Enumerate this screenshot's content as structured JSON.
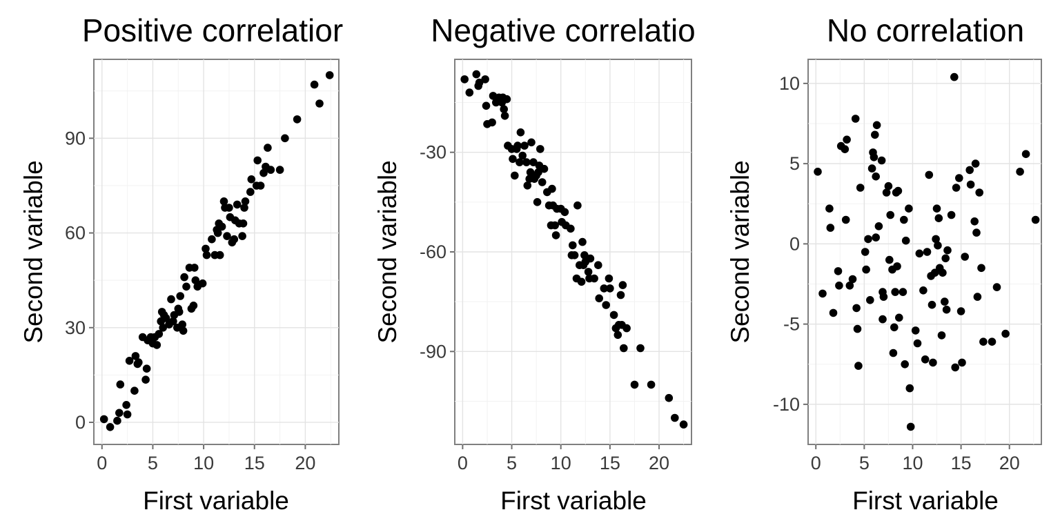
{
  "chart_data": [
    {
      "type": "scatter",
      "title": "Positive correlatior",
      "xlabel": "First variable",
      "ylabel": "Second variable",
      "xlim": [
        -0.8,
        23.3
      ],
      "ylim": [
        -7,
        115
      ],
      "xticks": [
        0,
        5,
        10,
        15,
        20
      ],
      "xtick_labels": [
        "0",
        "5",
        "10",
        "15",
        "20"
      ],
      "yticks": [
        0,
        30,
        60,
        90
      ],
      "ytick_labels": [
        "0",
        "30",
        "60",
        "90"
      ],
      "grid": true,
      "points": [
        [
          0.2,
          1
        ],
        [
          0.8,
          -1.5
        ],
        [
          1.5,
          0.5
        ],
        [
          1.7,
          3
        ],
        [
          1.8,
          12
        ],
        [
          2.4,
          5.5
        ],
        [
          2.5,
          2.5
        ],
        [
          2.7,
          19.5
        ],
        [
          3.2,
          10
        ],
        [
          3.3,
          21
        ],
        [
          3.5,
          18.5
        ],
        [
          3.6,
          19
        ],
        [
          4.0,
          27
        ],
        [
          4.3,
          13.5
        ],
        [
          4.4,
          17
        ],
        [
          4.5,
          26
        ],
        [
          4.8,
          27
        ],
        [
          5.0,
          25
        ],
        [
          5.2,
          27
        ],
        [
          5.4,
          24.5
        ],
        [
          5.6,
          28
        ],
        [
          5.8,
          32
        ],
        [
          5.9,
          35
        ],
        [
          6.0,
          30
        ],
        [
          6.1,
          34
        ],
        [
          6.3,
          33
        ],
        [
          6.6,
          31
        ],
        [
          6.8,
          39
        ],
        [
          7.0,
          32
        ],
        [
          7.1,
          34
        ],
        [
          7.4,
          30
        ],
        [
          7.5,
          36
        ],
        [
          7.6,
          35
        ],
        [
          7.7,
          40
        ],
        [
          7.9,
          31
        ],
        [
          8.0,
          29
        ],
        [
          8.1,
          46
        ],
        [
          8.3,
          43
        ],
        [
          8.6,
          49
        ],
        [
          8.8,
          36
        ],
        [
          9.0,
          37
        ],
        [
          9.1,
          49
        ],
        [
          9.2,
          45
        ],
        [
          9.4,
          43
        ],
        [
          9.9,
          44
        ],
        [
          10.2,
          55
        ],
        [
          10.3,
          53
        ],
        [
          10.8,
          58
        ],
        [
          11.1,
          53
        ],
        [
          11.3,
          61
        ],
        [
          11.4,
          60
        ],
        [
          11.5,
          63
        ],
        [
          11.6,
          53
        ],
        [
          11.8,
          62
        ],
        [
          12.0,
          70
        ],
        [
          12.1,
          68
        ],
        [
          12.3,
          59
        ],
        [
          12.5,
          68
        ],
        [
          12.6,
          65
        ],
        [
          12.8,
          57
        ],
        [
          13.0,
          58
        ],
        [
          13.1,
          64
        ],
        [
          13.3,
          69
        ],
        [
          13.5,
          63
        ],
        [
          13.8,
          59
        ],
        [
          13.9,
          63
        ],
        [
          14.0,
          68
        ],
        [
          14.1,
          70
        ],
        [
          14.6,
          73
        ],
        [
          14.7,
          77
        ],
        [
          15.2,
          75
        ],
        [
          15.3,
          83
        ],
        [
          15.6,
          75
        ],
        [
          15.9,
          79
        ],
        [
          16.1,
          81
        ],
        [
          16.3,
          87
        ],
        [
          16.6,
          80
        ],
        [
          17.5,
          80
        ],
        [
          18.0,
          90
        ],
        [
          19.2,
          96
        ],
        [
          20.9,
          107
        ],
        [
          21.4,
          101
        ],
        [
          22.4,
          110
        ]
      ]
    },
    {
      "type": "scatter",
      "title": "Negative correlatio",
      "xlabel": "First variable",
      "ylabel": "Second variable",
      "xlim": [
        -0.8,
        23.3
      ],
      "ylim": [
        -118,
        -2
      ],
      "xticks": [
        0,
        5,
        10,
        15,
        20
      ],
      "xtick_labels": [
        "0",
        "5",
        "10",
        "15",
        "20"
      ],
      "yticks": [
        -30,
        -60,
        -90
      ],
      "ytick_labels": [
        "-30",
        "-60",
        "-90"
      ],
      "grid": true,
      "points": [
        [
          0.2,
          -8
        ],
        [
          0.7,
          -12
        ],
        [
          1.4,
          -6.5
        ],
        [
          1.6,
          -10
        ],
        [
          1.7,
          -9
        ],
        [
          2.3,
          -8
        ],
        [
          2.4,
          -16
        ],
        [
          2.5,
          -21.5
        ],
        [
          3.0,
          -21
        ],
        [
          3.1,
          -13
        ],
        [
          3.4,
          -15
        ],
        [
          3.7,
          -13.5
        ],
        [
          4.0,
          -15
        ],
        [
          4.1,
          -13.5
        ],
        [
          4.2,
          -17
        ],
        [
          4.3,
          -19
        ],
        [
          4.5,
          -14
        ],
        [
          4.6,
          -28
        ],
        [
          5.0,
          -29
        ],
        [
          5.1,
          -32
        ],
        [
          5.3,
          -37
        ],
        [
          5.5,
          -29
        ],
        [
          5.6,
          -28
        ],
        [
          5.8,
          -33
        ],
        [
          5.9,
          -24
        ],
        [
          6.1,
          -31
        ],
        [
          6.3,
          -28
        ],
        [
          6.5,
          -33
        ],
        [
          6.6,
          -40
        ],
        [
          6.8,
          -38
        ],
        [
          6.9,
          -36
        ],
        [
          7.0,
          -27
        ],
        [
          7.2,
          -33
        ],
        [
          7.3,
          -38
        ],
        [
          7.5,
          -37
        ],
        [
          7.6,
          -45
        ],
        [
          7.7,
          -36
        ],
        [
          7.8,
          -34
        ],
        [
          7.9,
          -29
        ],
        [
          8.1,
          -39
        ],
        [
          8.3,
          -35
        ],
        [
          8.6,
          -42
        ],
        [
          8.8,
          -46
        ],
        [
          9.0,
          -52
        ],
        [
          9.1,
          -41
        ],
        [
          9.2,
          -46
        ],
        [
          9.4,
          -52
        ],
        [
          9.5,
          -55
        ],
        [
          9.6,
          -47
        ],
        [
          10.0,
          -47
        ],
        [
          10.1,
          -51
        ],
        [
          10.4,
          -48
        ],
        [
          10.5,
          -52
        ],
        [
          11.0,
          -53
        ],
        [
          11.1,
          -61
        ],
        [
          11.2,
          -58
        ],
        [
          11.4,
          -61
        ],
        [
          11.6,
          -68
        ],
        [
          11.7,
          -46
        ],
        [
          11.9,
          -64
        ],
        [
          12.1,
          -69
        ],
        [
          12.2,
          -57
        ],
        [
          12.3,
          -64
        ],
        [
          12.4,
          -61
        ],
        [
          12.5,
          -63
        ],
        [
          12.6,
          -62
        ],
        [
          12.8,
          -66
        ],
        [
          12.9,
          -68
        ],
        [
          13.0,
          -62
        ],
        [
          13.4,
          -68
        ],
        [
          13.8,
          -64
        ],
        [
          13.9,
          -74
        ],
        [
          14.4,
          -71
        ],
        [
          14.6,
          -76
        ],
        [
          14.9,
          -68
        ],
        [
          15.0,
          -71
        ],
        [
          15.4,
          -79
        ],
        [
          15.6,
          -83
        ],
        [
          15.8,
          -85
        ],
        [
          15.9,
          -82
        ],
        [
          16.1,
          -73
        ],
        [
          16.2,
          -82
        ],
        [
          16.3,
          -70
        ],
        [
          16.4,
          -89
        ],
        [
          16.7,
          -83
        ],
        [
          17.5,
          -100
        ],
        [
          18.1,
          -89
        ],
        [
          19.2,
          -100
        ],
        [
          21.0,
          -104
        ],
        [
          21.6,
          -110
        ],
        [
          22.5,
          -112
        ]
      ]
    },
    {
      "type": "scatter",
      "title": "No correlation",
      "xlabel": "First variable",
      "ylabel": "Second variable",
      "xlim": [
        -0.8,
        23.3
      ],
      "ylim": [
        -12.5,
        11.5
      ],
      "xticks": [
        0,
        5,
        10,
        15,
        20
      ],
      "xtick_labels": [
        "0",
        "5",
        "10",
        "15",
        "20"
      ],
      "yticks": [
        10,
        5,
        0,
        -5,
        -10
      ],
      "ytick_labels": [
        "10",
        "5",
        "0",
        "-5",
        "-10"
      ],
      "grid": true,
      "points": [
        [
          0.2,
          4.5
        ],
        [
          0.7,
          -3.1
        ],
        [
          1.4,
          2.2
        ],
        [
          1.5,
          1.0
        ],
        [
          1.8,
          -4.3
        ],
        [
          2.3,
          -1.7
        ],
        [
          2.4,
          -2.6
        ],
        [
          2.6,
          6.1
        ],
        [
          3.0,
          5.9
        ],
        [
          3.1,
          1.5
        ],
        [
          3.2,
          6.5
        ],
        [
          3.5,
          -2.6
        ],
        [
          3.8,
          -2.2
        ],
        [
          4.1,
          7.8
        ],
        [
          4.2,
          -4.0
        ],
        [
          4.3,
          -5.3
        ],
        [
          4.4,
          -7.6
        ],
        [
          4.6,
          3.5
        ],
        [
          5.1,
          -0.5
        ],
        [
          5.2,
          -1.6
        ],
        [
          5.4,
          0.3
        ],
        [
          5.6,
          -3.5
        ],
        [
          5.8,
          4.7
        ],
        [
          5.9,
          5.7
        ],
        [
          6.0,
          5.4
        ],
        [
          6.1,
          6.8
        ],
        [
          6.2,
          4.2
        ],
        [
          6.2,
          0.4
        ],
        [
          6.3,
          7.4
        ],
        [
          6.5,
          1.1
        ],
        [
          6.8,
          5.2
        ],
        [
          6.9,
          -3.0
        ],
        [
          6.9,
          -4.7
        ],
        [
          7.0,
          -3.3
        ],
        [
          7.3,
          3.2
        ],
        [
          7.5,
          3.6
        ],
        [
          7.6,
          -1.0
        ],
        [
          7.7,
          1.8
        ],
        [
          7.9,
          -1.6
        ],
        [
          8.0,
          -6.8
        ],
        [
          8.1,
          -5.2
        ],
        [
          8.2,
          -3.0
        ],
        [
          8.3,
          3.2
        ],
        [
          8.4,
          -1.4
        ],
        [
          8.5,
          3.3
        ],
        [
          8.6,
          -4.6
        ],
        [
          9.0,
          -3.0
        ],
        [
          9.1,
          1.5
        ],
        [
          9.2,
          -7.5
        ],
        [
          9.3,
          0.2
        ],
        [
          9.6,
          2.2
        ],
        [
          9.7,
          -9.0
        ],
        [
          9.8,
          -11.4
        ],
        [
          10.3,
          -5.4
        ],
        [
          10.5,
          -6.2
        ],
        [
          10.7,
          -0.6
        ],
        [
          11.1,
          -2.9
        ],
        [
          11.3,
          -7.2
        ],
        [
          11.5,
          -0.5
        ],
        [
          11.7,
          4.3
        ],
        [
          11.9,
          -2.0
        ],
        [
          12.0,
          -3.8
        ],
        [
          12.1,
          -7.4
        ],
        [
          12.3,
          -1.8
        ],
        [
          12.4,
          0.3
        ],
        [
          12.5,
          2.2
        ],
        [
          12.6,
          -0.1
        ],
        [
          12.7,
          1.6
        ],
        [
          12.8,
          -1.5
        ],
        [
          13.0,
          -5.7
        ],
        [
          13.1,
          -1.8
        ],
        [
          13.3,
          -3.6
        ],
        [
          13.4,
          -0.9
        ],
        [
          13.5,
          -4.1
        ],
        [
          13.6,
          -0.4
        ],
        [
          14.0,
          1.8
        ],
        [
          14.3,
          10.4
        ],
        [
          14.4,
          -7.7
        ],
        [
          14.5,
          3.5
        ],
        [
          14.8,
          4.1
        ],
        [
          15.0,
          -4.2
        ],
        [
          15.1,
          -7.4
        ],
        [
          15.4,
          -0.8
        ],
        [
          15.9,
          4.6
        ],
        [
          16.0,
          3.7
        ],
        [
          16.4,
          1.4
        ],
        [
          16.5,
          5.0
        ],
        [
          16.6,
          0.7
        ],
        [
          16.7,
          -3.3
        ],
        [
          16.9,
          3.2
        ],
        [
          17.1,
          -1.5
        ],
        [
          17.3,
          -6.1
        ],
        [
          18.2,
          -6.1
        ],
        [
          18.7,
          -2.7
        ],
        [
          19.6,
          -5.6
        ],
        [
          21.1,
          4.5
        ],
        [
          21.7,
          5.6
        ],
        [
          22.7,
          1.5
        ]
      ]
    }
  ]
}
